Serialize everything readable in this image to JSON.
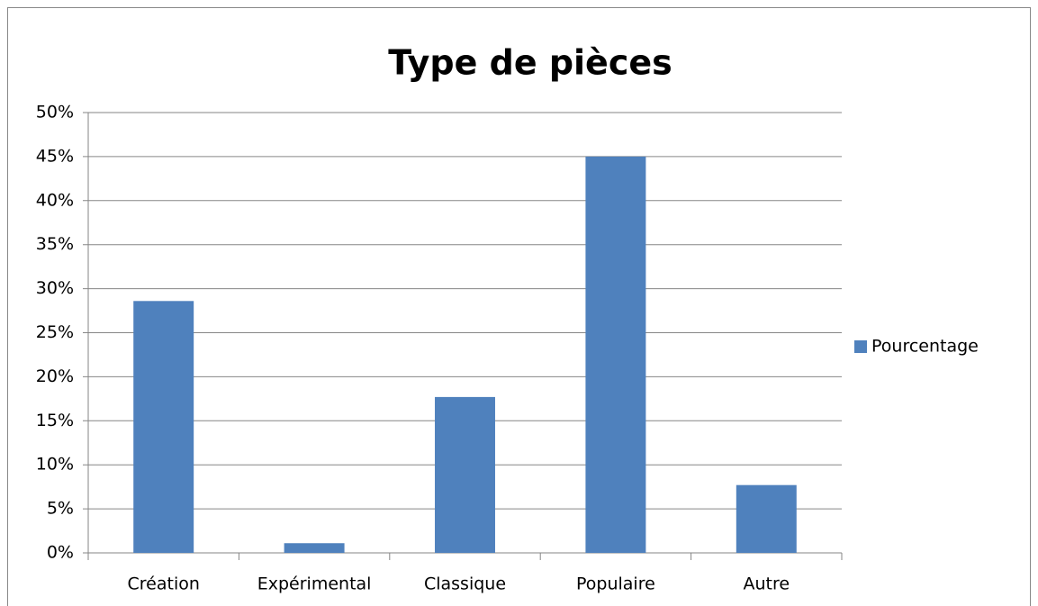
{
  "chart_data": {
    "type": "bar",
    "title": "Type de pièces",
    "categories": [
      "Création",
      "Expérimental",
      "Classique",
      "Populaire",
      "Autre"
    ],
    "series": [
      {
        "name": "Pourcentage",
        "color": "#4f81bd",
        "values": [
          28.6,
          1.1,
          17.7,
          45,
          7.7
        ]
      }
    ],
    "ylim": [
      0,
      50
    ],
    "yticks": [
      {
        "value": 0,
        "label": "0%"
      },
      {
        "value": 5,
        "label": "5%"
      },
      {
        "value": 10,
        "label": "10%"
      },
      {
        "value": 15,
        "label": "15%"
      },
      {
        "value": 20,
        "label": "20%"
      },
      {
        "value": 25,
        "label": "25%"
      },
      {
        "value": 30,
        "label": "30%"
      },
      {
        "value": 35,
        "label": "35%"
      },
      {
        "value": 40,
        "label": "40%"
      },
      {
        "value": 45,
        "label": "45%"
      },
      {
        "value": 50,
        "label": "50%"
      }
    ],
    "grid": true,
    "legend": "right"
  }
}
